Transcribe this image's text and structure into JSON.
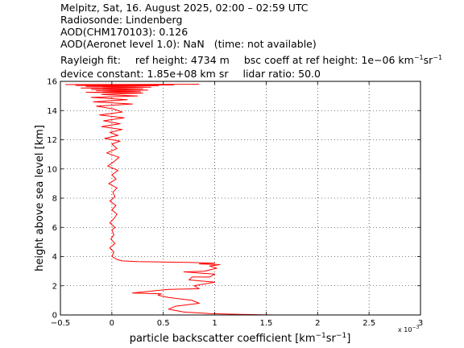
{
  "header": {
    "line1": "Melpitz, Sat, 16. August 2025, 02:00 – 02:59 UTC",
    "line2": "Radiosonde: Lindenberg",
    "line3": "AOD(CHM170103): 0.126",
    "line4a": "AOD(Aeronet level 1.0): NaN",
    "line4b": "(time: not available)",
    "line5a": "Rayleigh fit:",
    "line5b": "ref height: 4734 m",
    "line5c": "bsc coeff at ref height: 1e−06 km",
    "line5c_sup1": "−1",
    "line5c_mid": "sr",
    "line5c_sup2": "−1",
    "line6a": "device constant: 1.85e+08 km sr",
    "line6b": "lidar ratio: 50.0"
  },
  "colors": {
    "line": "#ff0000",
    "axes": "#000000",
    "grid": "#000000",
    "background": "#ffffff"
  },
  "chart_data": {
    "type": "line",
    "xlabel_main": "particle backscatter coefficient [km",
    "xlabel_sup1": "−1",
    "xlabel_mid": "sr",
    "xlabel_sup2": "−1",
    "xlabel_end": "]",
    "ylabel": "height above sea level [km]",
    "x_exponent_label": "x 10",
    "x_exponent_power": "−3",
    "xlim": [
      -0.5,
      3.0
    ],
    "ylim": [
      0,
      16
    ],
    "x_ticks": [
      -0.5,
      0,
      0.5,
      1,
      1.5,
      2,
      2.5,
      3
    ],
    "x_tick_labels": [
      "−0.5",
      "0",
      "0.5",
      "1",
      "1.5",
      "2",
      "2.5",
      "3"
    ],
    "y_ticks": [
      0,
      2,
      4,
      6,
      8,
      10,
      12,
      14,
      16
    ],
    "y_tick_labels": [
      "0",
      "2",
      "4",
      "6",
      "8",
      "10",
      "12",
      "14",
      "16"
    ],
    "grid": true,
    "series": [
      {
        "color": "#ff0000",
        "x": [
          1.57,
          1.2,
          0.95,
          0.7,
          0.55,
          0.62,
          0.85,
          0.78,
          0.55,
          0.45,
          0.48,
          0.2,
          0.4,
          0.55,
          0.85,
          0.8,
          1.0,
          0.75,
          0.78,
          0.95,
          1.0,
          0.7,
          0.9,
          1.02,
          0.95,
          1.05,
          0.85,
          1.0,
          0.75,
          0.55,
          0.25,
          0.1,
          0.05,
          0.0,
          0.02,
          -0.02,
          0.03,
          -0.01,
          0.02,
          0.0,
          0.03,
          -0.02,
          0.02,
          0.05,
          0.0,
          0.04,
          -0.02,
          0.03,
          0.01,
          0.05,
          -0.03,
          0.04,
          0.0,
          0.06,
          -0.04,
          0.02,
          0.07,
          -0.05,
          0.05,
          0.0,
          0.08,
          -0.07,
          0.06,
          -0.02,
          0.1,
          -0.1,
          0.08,
          -0.08,
          0.12,
          -0.12,
          0.1,
          0.02,
          -0.15,
          0.2,
          -0.18,
          0.15,
          -0.2,
          0.25,
          -0.1,
          0.3,
          -0.25,
          0.28,
          -0.15,
          0.35,
          -0.2,
          0.3,
          -0.3,
          0.38,
          -0.25,
          0.45,
          -0.35,
          0.6,
          -0.45,
          0.85
        ],
        "y": [
          0.0,
          0.05,
          0.1,
          0.2,
          0.4,
          0.6,
          0.8,
          1.0,
          1.2,
          1.35,
          1.45,
          1.5,
          1.65,
          1.75,
          1.8,
          2.0,
          2.25,
          2.4,
          2.6,
          2.6,
          2.8,
          2.95,
          3.0,
          3.2,
          3.35,
          3.45,
          3.5,
          3.55,
          3.6,
          3.62,
          3.65,
          3.7,
          3.8,
          4.0,
          4.3,
          4.6,
          4.9,
          5.2,
          5.5,
          5.8,
          6.0,
          6.3,
          6.6,
          6.9,
          7.2,
          7.5,
          7.8,
          8.1,
          8.4,
          8.7,
          9.0,
          9.3,
          9.6,
          9.9,
          10.2,
          10.5,
          10.8,
          11.1,
          11.4,
          11.7,
          11.9,
          12.1,
          12.3,
          12.5,
          12.7,
          12.9,
          13.1,
          13.3,
          13.5,
          13.7,
          13.9,
          14.1,
          14.3,
          14.45,
          14.6,
          14.75,
          14.9,
          15.0,
          15.1,
          15.2,
          15.25,
          15.3,
          15.35,
          15.4,
          15.45,
          15.5,
          15.55,
          15.6,
          15.65,
          15.7,
          15.72,
          15.75,
          15.78,
          15.8
        ]
      }
    ]
  }
}
